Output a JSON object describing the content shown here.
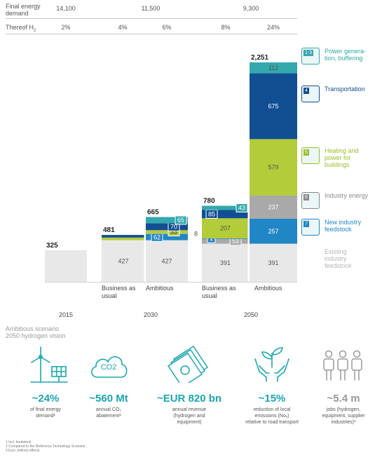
{
  "table": {
    "row1_label_lines": [
      "Final energy",
      "demand"
    ],
    "row2_label": "Thereof H",
    "row2_label_sub": "2",
    "demand_values": [
      "14,100",
      "11,500",
      "9,300"
    ],
    "h2_shares": [
      "2%",
      "4%",
      "6%",
      "8%",
      "24%"
    ]
  },
  "chart_data": {
    "type": "bar",
    "stacked": true,
    "unit": "",
    "columns": [
      {
        "year": "2015",
        "category": "",
        "total": 325,
        "segments": [
          {
            "series": "Existing industry feedstock",
            "value": 325,
            "label": ""
          }
        ]
      },
      {
        "year": "2030",
        "category": "Business as usual",
        "total": 481,
        "segments": [
          {
            "series": "Existing industry feedstock",
            "value": 427,
            "label": "427"
          },
          {
            "series": "Heating and power for buildings",
            "value": 27,
            "label": ""
          },
          {
            "series": "Transportation",
            "value": 27,
            "label": ""
          }
        ]
      },
      {
        "year": "2030",
        "category": "Ambitious",
        "total": 665,
        "segments": [
          {
            "series": "Existing industry feedstock",
            "value": 427,
            "label": "427"
          },
          {
            "series": "New industry feedstock",
            "value": 62,
            "label": "62"
          },
          {
            "series": "Industry energy",
            "value": 8,
            "label": "8"
          },
          {
            "series": "Heating and power for buildings",
            "value": 33,
            "label": "33"
          },
          {
            "series": "Transportation",
            "value": 70,
            "label": "70"
          },
          {
            "series": "Power generation, buffering",
            "value": 65,
            "label": "65"
          }
        ]
      },
      {
        "year": "2050",
        "category": "Business as usual",
        "total": 780,
        "segments": [
          {
            "series": "Existing industry feedstock",
            "value": 391,
            "label": "391"
          },
          {
            "series": "Industry energy",
            "value": 53,
            "label": "53"
          },
          {
            "series": "New industry feedstock",
            "value": 1,
            "label": "1"
          },
          {
            "series": "Heating and power for buildings",
            "value": 207,
            "label": "207"
          },
          {
            "series": "Transportation",
            "value": 85,
            "label": "85"
          },
          {
            "series": "Power generation, buffering",
            "value": 43,
            "label": "43"
          }
        ]
      },
      {
        "year": "2050",
        "category": "Ambitious",
        "total": 2251,
        "segments": [
          {
            "series": "Existing industry feedstock",
            "value": 391,
            "label": "391"
          },
          {
            "series": "New industry feedstock",
            "value": 257,
            "label": "257"
          },
          {
            "series": "Industry energy",
            "value": 237,
            "label": "237"
          },
          {
            "series": "Heating and power for buildings",
            "value": 579,
            "label": "579"
          },
          {
            "series": "Transportation",
            "value": 675,
            "label": "675"
          },
          {
            "series": "Power generation, buffering",
            "value": 112,
            "label": "112"
          }
        ]
      }
    ],
    "total_labels": [
      "325",
      "481",
      "665",
      "780",
      "2,251"
    ],
    "category_labels": [
      [
        "Business as",
        "usual"
      ],
      [
        "Ambitious"
      ],
      [
        "Business as",
        "usual"
      ],
      [
        "Ambitious"
      ]
    ],
    "years": [
      "2015",
      "2030",
      "2050"
    ],
    "colors": {
      "Existing industry feedstock": "#e8e8e8",
      "New industry feedstock": "#2186c6",
      "Industry energy": "#a9a9a9",
      "Heating and power for buildings": "#b3cc3a",
      "Transportation": "#124e92",
      "Power generation, buffering": "#33a8ad"
    },
    "legend": [
      {
        "badge": "1-3",
        "lines": [
          "Power genera-",
          "tion, buffering"
        ],
        "color": "#33a8ad"
      },
      {
        "badge": "4",
        "lines": [
          "Transportation"
        ],
        "color": "#124e92"
      },
      {
        "badge": "5",
        "lines": [
          "Heating and",
          "power for",
          "buildings"
        ],
        "color": "#9cbd28"
      },
      {
        "badge": "6",
        "lines": [
          "Industry energy"
        ],
        "color": "#8a8a8a"
      },
      {
        "badge": "7",
        "lines": [
          "New industry",
          "feedstock"
        ],
        "color": "#2186c6"
      },
      {
        "badge": "",
        "lines": [
          "Existing",
          "industry",
          "feedstock"
        ],
        "color": "#b5b5b5"
      }
    ]
  },
  "vision": {
    "title_lines": [
      "Ambitious scenario",
      "2050 hydrogen vision"
    ],
    "co2_icon_text": "CO2",
    "items": [
      {
        "icon": "wind-solar-icon",
        "big": "~24%",
        "desc": [
          "of final energy",
          "demand¹"
        ]
      },
      {
        "icon": "co2-cloud-icon",
        "big": "~560 Mt",
        "desc": [
          "annual CO₂",
          "abatement²"
        ]
      },
      {
        "icon": "money-icon",
        "big": "~EUR 820 bn",
        "desc": [
          "annual revenue",
          "(hydrogen and",
          "equipment)"
        ]
      },
      {
        "icon": "hands-plant-icon",
        "big": "~15%",
        "desc": [
          "reduction of local",
          "emissions (Noₓ)",
          "relative to road transport"
        ]
      },
      {
        "icon": "people-icon",
        "big": "~5.4 m",
        "desc": [
          "jobs (hydrogen,",
          "equipment, supplier",
          "industries)³"
        ]
      }
    ]
  },
  "footnotes": [
    "1 Incl. feedstock",
    "2 Compared to the Reference Technology Scenario",
    "3 Excl. indirect effects"
  ]
}
